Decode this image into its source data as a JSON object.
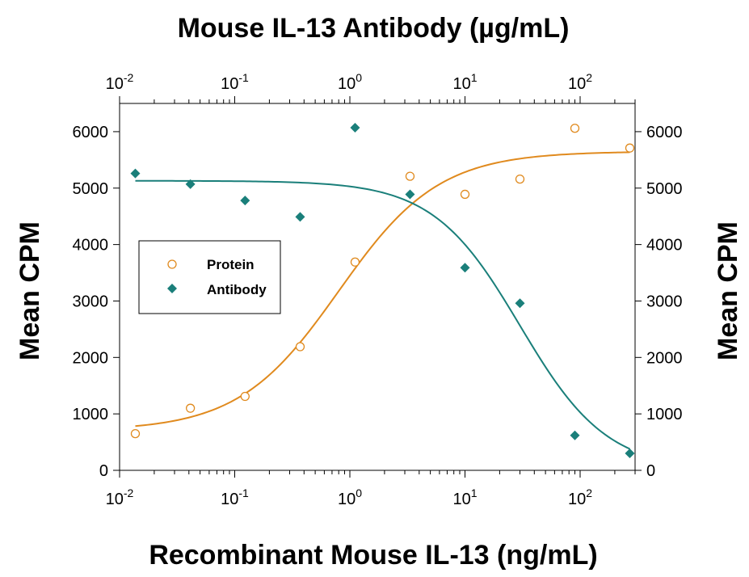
{
  "chart_data": {
    "type": "scatter",
    "top_title": "Mouse IL-13 Antibody (µg/mL)",
    "xlabel": "Recombinant Mouse IL-13 (ng/mL)",
    "ylabel_left": "Mean CPM",
    "ylabel_right": "Mean CPM",
    "x_scale": "log",
    "xlim": [
      0.01,
      300
    ],
    "top_x_scale": "log",
    "top_xlim": [
      0.01,
      300
    ],
    "ylim": [
      0,
      6500
    ],
    "y_ticks": [
      0,
      1000,
      2000,
      3000,
      4000,
      5000,
      6000
    ],
    "y_tick_labels": [
      "0",
      "1000",
      "2000",
      "3000",
      "4000",
      "5000",
      "6000"
    ],
    "x_tick_labels": [
      {
        "base": "10",
        "exp": "-2"
      },
      {
        "base": "10",
        "exp": "-1"
      },
      {
        "base": "10",
        "exp": "0"
      },
      {
        "base": "10",
        "exp": "1"
      },
      {
        "base": "10",
        "exp": "2"
      }
    ],
    "grid": false,
    "legend_position": "center-left",
    "series": [
      {
        "name": "Protein",
        "marker": "open-circle",
        "color": "#E08A1E",
        "x": [
          0.0137,
          0.0412,
          0.123,
          0.37,
          1.11,
          3.33,
          10,
          30,
          90,
          270
        ],
        "y": [
          650,
          1100,
          1310,
          2190,
          3690,
          5210,
          4890,
          5160,
          6060,
          5710
        ],
        "fit": {
          "bottom": 700,
          "top": 5650,
          "ec50": 0.8,
          "hill": 1.0
        }
      },
      {
        "name": "Antibody",
        "marker": "filled-diamond",
        "color": "#1A7F7A",
        "x": [
          0.0137,
          0.0412,
          0.123,
          0.37,
          1.11,
          3.33,
          10,
          30,
          90,
          270
        ],
        "y": [
          5260,
          5070,
          4780,
          4490,
          6070,
          4890,
          3590,
          2960,
          620,
          300
        ],
        "fit": {
          "bottom": 0,
          "top": 5130,
          "ec50": 30,
          "hill": 1.15
        }
      }
    ]
  }
}
